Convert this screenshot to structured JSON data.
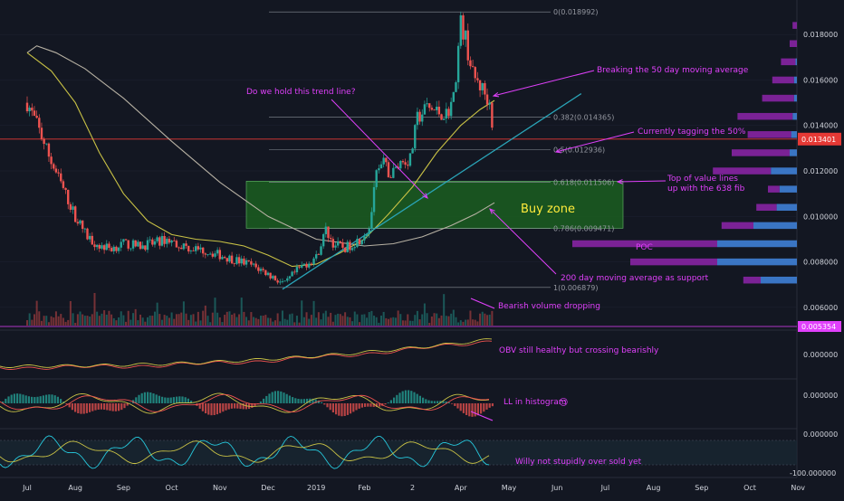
{
  "chart_data": {
    "type": "candlestick",
    "symbol_note": "",
    "colors": {
      "background": "#131722",
      "up": "#26a69a",
      "down": "#ef5350",
      "buy_zone_fill": "#1b5e20",
      "buy_zone_text": "#ffeb3b",
      "annotation": "#e040fb",
      "trendline": "#2aa5b8",
      "ma50": "#c8c145",
      "ma200": "#b7b1a3",
      "fib": "#8a8f98",
      "current_price_line": "#e53935",
      "vp_up": "#3f7fd6",
      "vp_down": "#8e24aa",
      "axis_text": "#d1d4dc",
      "grid": "#1f2433"
    },
    "price_axis": {
      "min": 0.0052,
      "max": 0.0192,
      "ticks": [
        "0.018000",
        "0.016000",
        "0.014000",
        "0.012000",
        "0.010000",
        "0.008000",
        "0.006000"
      ],
      "tick_values": [
        0.018,
        0.016,
        0.014,
        0.012,
        0.01,
        0.008,
        0.006
      ],
      "current_price_label": "0.013401",
      "current_price": 0.013401,
      "low_label": "0.005354",
      "low_value": 0.005354
    },
    "time_axis": {
      "labels": [
        "Jul",
        "Aug",
        "Sep",
        "Oct",
        "Nov",
        "Dec",
        "2019",
        "Feb",
        "2",
        "Apr",
        "May",
        "Jun",
        "Jul",
        "Aug",
        "Sep",
        "Oct",
        "Nov"
      ],
      "label_months": [
        0,
        1,
        2,
        3,
        4,
        5,
        6,
        7,
        8,
        9,
        10,
        11,
        12,
        13,
        14,
        15,
        16
      ]
    },
    "fib_levels": [
      {
        "label": "0(0.018992)",
        "value": 0.018992
      },
      {
        "label": "0.382(0.014365)",
        "value": 0.014365
      },
      {
        "label": "0.5(0.012936)",
        "value": 0.012936
      },
      {
        "label": "0.618(0.011506)",
        "value": 0.011506
      },
      {
        "label": "0.786(0.009471)",
        "value": 0.009471
      },
      {
        "label": "1(0.006879)",
        "value": 0.006879
      }
    ],
    "buy_zone": {
      "label": "Buy zone",
      "top": 0.01155,
      "bottom": 0.00948
    },
    "annotations": {
      "trend_line_question": "Do we hold this trend line?",
      "breaking_50": "Breaking the 50 day moving average",
      "tagging_50": "Currently tagging the 50%",
      "value_lines": [
        "Top of value lines",
        "up with the 638 fib"
      ],
      "poc": "POC",
      "ma200_support": "200 day moving average as support",
      "bearish_volume": "Bearish volume dropping",
      "obv": "OBV still healthy but crossing bearishly",
      "ll_histogram": "LL in histogram",
      "willy": "Willy not stupidly over sold yet"
    },
    "indicator_axes": {
      "obv": "0.000000",
      "macd": "0.000000",
      "willy_top": "0.000000",
      "willy_bottom": "-100.000000"
    },
    "price_path": [
      [
        0.0,
        0.015
      ],
      [
        0.25,
        0.0138
      ],
      [
        0.5,
        0.0124
      ],
      [
        0.75,
        0.0112
      ],
      [
        1.0,
        0.01
      ],
      [
        1.25,
        0.0091
      ],
      [
        1.5,
        0.0087
      ],
      [
        1.75,
        0.0086
      ],
      [
        2.0,
        0.0088
      ],
      [
        2.3,
        0.0087
      ],
      [
        2.6,
        0.0088
      ],
      [
        2.9,
        0.009
      ],
      [
        3.1,
        0.0088
      ],
      [
        3.4,
        0.0086
      ],
      [
        3.7,
        0.0085
      ],
      [
        4.0,
        0.0083
      ],
      [
        4.3,
        0.0081
      ],
      [
        4.6,
        0.0079
      ],
      [
        4.9,
        0.0076
      ],
      [
        5.2,
        0.0072
      ],
      [
        5.35,
        0.007
      ],
      [
        5.5,
        0.0074
      ],
      [
        5.7,
        0.0078
      ],
      [
        6.0,
        0.0082
      ],
      [
        6.2,
        0.0094
      ],
      [
        6.35,
        0.0088
      ],
      [
        6.6,
        0.0086
      ],
      [
        6.9,
        0.009
      ],
      [
        7.1,
        0.0095
      ],
      [
        7.25,
        0.0118
      ],
      [
        7.4,
        0.0123
      ],
      [
        7.55,
        0.0118
      ],
      [
        7.75,
        0.0124
      ],
      [
        7.95,
        0.0125
      ],
      [
        8.1,
        0.0143
      ],
      [
        8.3,
        0.0148
      ],
      [
        8.5,
        0.0146
      ],
      [
        8.7,
        0.0145
      ],
      [
        8.85,
        0.0152
      ],
      [
        9.0,
        0.0185
      ],
      [
        9.1,
        0.0178
      ],
      [
        9.25,
        0.0162
      ],
      [
        9.45,
        0.0156
      ],
      [
        9.6,
        0.015
      ],
      [
        9.7,
        0.0134
      ]
    ],
    "ma50_path": [
      [
        0.0,
        0.0172
      ],
      [
        0.5,
        0.0164
      ],
      [
        1.0,
        0.015
      ],
      [
        1.5,
        0.0128
      ],
      [
        2.0,
        0.011
      ],
      [
        2.5,
        0.0098
      ],
      [
        3.0,
        0.0092
      ],
      [
        3.5,
        0.009
      ],
      [
        4.0,
        0.0089
      ],
      [
        4.5,
        0.0087
      ],
      [
        5.0,
        0.0083
      ],
      [
        5.5,
        0.0078
      ],
      [
        6.0,
        0.0079
      ],
      [
        6.5,
        0.0084
      ],
      [
        7.0,
        0.009
      ],
      [
        7.5,
        0.0101
      ],
      [
        8.0,
        0.0113
      ],
      [
        8.5,
        0.0128
      ],
      [
        9.0,
        0.014
      ],
      [
        9.4,
        0.0147
      ],
      [
        9.7,
        0.0151
      ]
    ],
    "ma200_path": [
      [
        0.0,
        0.0172
      ],
      [
        0.2,
        0.0175
      ],
      [
        0.6,
        0.0172
      ],
      [
        1.2,
        0.0165
      ],
      [
        2.0,
        0.0152
      ],
      [
        3.0,
        0.0133
      ],
      [
        4.0,
        0.0115
      ],
      [
        5.0,
        0.01
      ],
      [
        6.0,
        0.009
      ],
      [
        7.0,
        0.0087
      ],
      [
        7.6,
        0.0088
      ],
      [
        8.2,
        0.0091
      ],
      [
        8.8,
        0.0096
      ],
      [
        9.3,
        0.0101
      ],
      [
        9.7,
        0.0106
      ]
    ],
    "trendline": [
      [
        5.3,
        0.0068
      ],
      [
        11.5,
        0.0154
      ]
    ],
    "volume_profile": [
      {
        "price": 0.0184,
        "up": 0.0,
        "down": 0.03
      },
      {
        "price": 0.0176,
        "up": 0.0,
        "down": 0.05
      },
      {
        "price": 0.0168,
        "up": 0.01,
        "down": 0.1
      },
      {
        "price": 0.016,
        "up": 0.02,
        "down": 0.15
      },
      {
        "price": 0.0152,
        "up": 0.02,
        "down": 0.22
      },
      {
        "price": 0.0144,
        "up": 0.03,
        "down": 0.38
      },
      {
        "price": 0.0136,
        "up": 0.04,
        "down": 0.3
      },
      {
        "price": 0.0128,
        "up": 0.05,
        "down": 0.4
      },
      {
        "price": 0.012,
        "up": 0.18,
        "down": 0.4
      },
      {
        "price": 0.0112,
        "up": 0.12,
        "down": 0.08
      },
      {
        "price": 0.0104,
        "up": 0.14,
        "down": 0.14
      },
      {
        "price": 0.0096,
        "up": 0.3,
        "down": 0.22
      },
      {
        "price": 0.0088,
        "up": 0.55,
        "down": 1.0
      },
      {
        "price": 0.008,
        "up": 0.55,
        "down": 0.6
      },
      {
        "price": 0.0072,
        "up": 0.25,
        "down": 0.12
      }
    ]
  }
}
